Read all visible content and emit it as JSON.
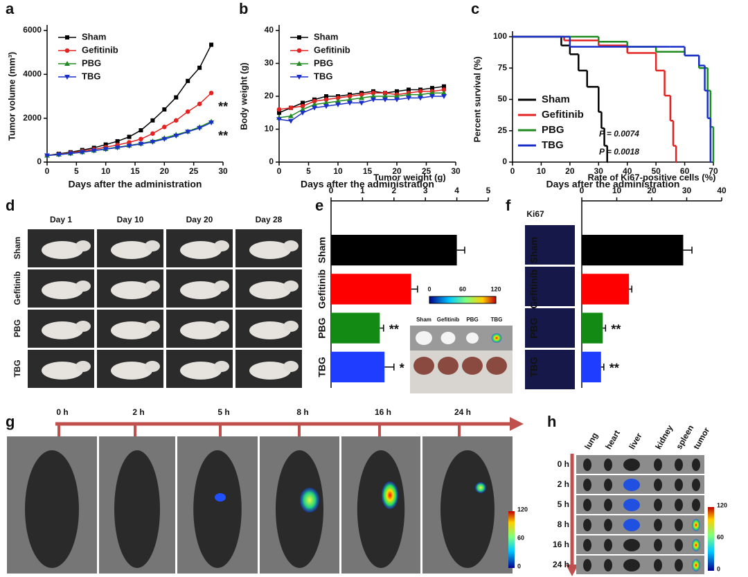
{
  "figure": {
    "panel_letters": [
      "a",
      "b",
      "c",
      "d",
      "e",
      "f",
      "g",
      "h"
    ],
    "d": {
      "columns": [
        "Day 1",
        "Day 10",
        "Day 20",
        "Day 28"
      ],
      "rows": [
        "Sham",
        "Gefitinib",
        "PBG",
        "TBG"
      ]
    },
    "e": {
      "inset_labels": [
        "Sham",
        "Gefitinib",
        "PBG",
        "TBG"
      ],
      "colorbar": [
        "0",
        "60",
        "120"
      ]
    },
    "f": {
      "image_label": "Ki67"
    },
    "g": {
      "times": [
        "0 h",
        "2 h",
        "5 h",
        "8 h",
        "16 h",
        "24 h"
      ],
      "colorbar": [
        "120",
        "60",
        "0"
      ]
    },
    "h": {
      "organs": [
        "lung",
        "heart",
        "liver",
        "kidney",
        "spleen",
        "tumor"
      ],
      "times": [
        "0 h",
        "2 h",
        "5 h",
        "8 h",
        "16 h",
        "24 h"
      ],
      "colorbar": [
        "120",
        "60",
        "0"
      ]
    }
  },
  "chart_data": [
    {
      "type": "line",
      "xlabel": "Days after the administration",
      "ylabel": "Tumor volume (mm³)",
      "x": [
        0,
        2,
        4,
        6,
        8,
        10,
        12,
        14,
        16,
        18,
        20,
        22,
        24,
        26,
        28
      ],
      "xlim": [
        0,
        30
      ],
      "xticks": [
        0,
        5,
        10,
        15,
        20,
        25,
        30
      ],
      "ylim": [
        0,
        6000
      ],
      "yticks": [
        0,
        2000,
        4000,
        6000
      ],
      "legend": "upper left",
      "series": [
        {
          "name": "Sham",
          "color": "#000000",
          "marker": "square",
          "values": [
            300,
            380,
            450,
            550,
            650,
            800,
            950,
            1150,
            1450,
            1900,
            2400,
            2950,
            3700,
            4300,
            5350
          ]
        },
        {
          "name": "Gefitinib",
          "color": "#e32222",
          "marker": "circle",
          "values": [
            300,
            360,
            420,
            500,
            580,
            680,
            780,
            900,
            1050,
            1300,
            1600,
            1900,
            2300,
            2650,
            3150
          ]
        },
        {
          "name": "PBG",
          "color": "#1f8a1f",
          "marker": "up",
          "values": [
            300,
            350,
            400,
            460,
            530,
            600,
            680,
            760,
            850,
            950,
            1100,
            1250,
            1400,
            1600,
            1850
          ]
        },
        {
          "name": "TBG",
          "color": "#1a2fc9",
          "marker": "down",
          "values": [
            300,
            340,
            390,
            450,
            520,
            590,
            660,
            740,
            830,
            920,
            1050,
            1200,
            1380,
            1550,
            1800
          ]
        }
      ],
      "annotations": [
        {
          "text": "**",
          "color": "#1a2fc9"
        },
        {
          "text": "**",
          "color": "#1f8a1f"
        }
      ]
    },
    {
      "type": "line",
      "xlabel": "Days after the administration",
      "ylabel": "Body weight (g)",
      "x": [
        0,
        2,
        4,
        6,
        8,
        10,
        12,
        14,
        16,
        18,
        20,
        22,
        24,
        26,
        28
      ],
      "xlim": [
        0,
        30
      ],
      "xticks": [
        0,
        5,
        10,
        15,
        20,
        25,
        30
      ],
      "ylim": [
        0,
        40
      ],
      "yticks": [
        0,
        10,
        20,
        30,
        40
      ],
      "legend": "upper left",
      "series": [
        {
          "name": "Sham",
          "color": "#000000",
          "marker": "square",
          "values": [
            15,
            16.5,
            18,
            19,
            20,
            20,
            20.5,
            21,
            21.5,
            21,
            21.5,
            22,
            22,
            22.5,
            23
          ]
        },
        {
          "name": "Gefitinib",
          "color": "#e32222",
          "marker": "circle",
          "values": [
            16,
            16.5,
            17,
            18.5,
            19,
            19.5,
            20,
            20.5,
            21,
            21,
            20.5,
            21,
            21.5,
            21.5,
            22
          ]
        },
        {
          "name": "PBG",
          "color": "#1f8a1f",
          "marker": "up",
          "values": [
            13.5,
            14,
            16,
            17.5,
            18,
            18.5,
            19,
            19.5,
            20,
            20,
            20,
            20.5,
            20.5,
            21,
            21
          ]
        },
        {
          "name": "TBG",
          "color": "#1a2fc9",
          "marker": "down",
          "values": [
            13,
            12.5,
            15,
            16.5,
            17,
            17.5,
            18,
            18,
            19,
            19,
            19,
            19.5,
            19.5,
            20,
            20
          ]
        }
      ]
    },
    {
      "type": "step",
      "xlabel": "Days after the administration",
      "ylabel": "Percent survival (%)",
      "xlim": [
        0,
        70
      ],
      "xticks": [
        0,
        10,
        20,
        30,
        40,
        50,
        60,
        70
      ],
      "ylim": [
        0,
        100
      ],
      "yticks": [
        0,
        25,
        50,
        75,
        100
      ],
      "legend": "lower left",
      "series": [
        {
          "name": "Sham",
          "color": "#000000",
          "x": [
            0,
            17,
            20,
            23,
            26,
            30,
            31,
            32,
            33
          ],
          "values": [
            100,
            93,
            86,
            73,
            60,
            40,
            27,
            13,
            0
          ]
        },
        {
          "name": "Gefitinib",
          "color": "#e32222",
          "x": [
            0,
            18,
            30,
            40,
            50,
            53,
            55,
            56,
            57
          ],
          "values": [
            100,
            97,
            93,
            87,
            73,
            53,
            33,
            13,
            0
          ]
        },
        {
          "name": "PBG",
          "color": "#1f8a1f",
          "x": [
            0,
            30,
            40,
            50,
            60,
            65,
            68,
            69,
            70
          ],
          "values": [
            100,
            96,
            92,
            88,
            85,
            75,
            57,
            28,
            0
          ]
        },
        {
          "name": "TBG",
          "color": "#1a2fc9",
          "x": [
            0,
            20,
            40,
            55,
            60,
            65,
            67,
            68,
            69
          ],
          "values": [
            100,
            92,
            92,
            92,
            85,
            77,
            57,
            35,
            0
          ]
        }
      ],
      "annotations": [
        {
          "text": "P = 0.0074",
          "color": "#1f8a1f"
        },
        {
          "text": "P = 0.0018",
          "color": "#1a2fc9"
        }
      ]
    },
    {
      "type": "hbar",
      "xlabel": "Tumor weight (g)",
      "categories": [
        "Sham",
        "Gefitinib",
        "PBG",
        "TBG"
      ],
      "values": [
        4.0,
        2.55,
        1.55,
        1.7
      ],
      "errors": [
        0.25,
        0.2,
        0.12,
        0.3
      ],
      "colors": [
        "#000000",
        "#ff0000",
        "#138a13",
        "#1f3dff"
      ],
      "xlim": [
        0,
        5
      ],
      "xticks": [
        0,
        1,
        2,
        3,
        4,
        5
      ],
      "annotations": [
        {
          "category": "PBG",
          "text": "**",
          "color": "#1f8a1f"
        },
        {
          "category": "TBG",
          "text": "*",
          "color": "#1a2fc9"
        }
      ]
    },
    {
      "type": "hbar",
      "xlabel": "Rate of Ki67-positive cells (%)",
      "categories": [
        "Sham",
        "Gefitinib",
        "PBG",
        "TBG"
      ],
      "values": [
        29,
        13.5,
        6,
        5.5
      ],
      "errors": [
        2.5,
        0.8,
        0.8,
        0.8
      ],
      "colors": [
        "#000000",
        "#ff0000",
        "#138a13",
        "#1f3dff"
      ],
      "xlim": [
        0,
        40
      ],
      "xticks": [
        0,
        10,
        20,
        30,
        40
      ],
      "annotations": [
        {
          "category": "PBG",
          "text": "**",
          "color": "#1f8a1f"
        },
        {
          "category": "TBG",
          "text": "**",
          "color": "#1a2fc9"
        }
      ]
    }
  ]
}
